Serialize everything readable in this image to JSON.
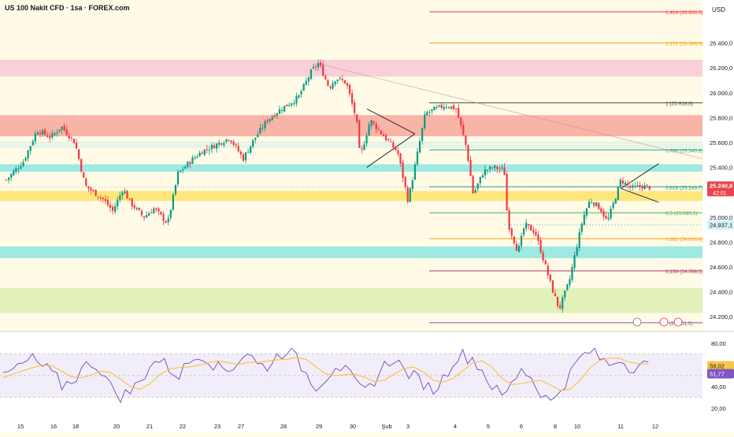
{
  "title": "US 100 Nakit CFD · 1sa · FOREX.com",
  "currency": "USD",
  "price_axis_labels": [
    "26.400,0",
    "26.200,0",
    "26.000,0",
    "25.800,0",
    "25.600,0",
    "25.400,0",
    "25.000,0",
    "24.800,0",
    "24.600,0",
    "24.400,0",
    "24.200,0"
  ],
  "last_price": "25.240,8",
  "countdown": "42:01",
  "reference_price": "24.937,1",
  "rsi_axis_labels": [
    "80,00",
    "60,00",
    "40,00",
    "20,00"
  ],
  "rsi_values": {
    "rsi": "59,02",
    "ma": "51,77"
  },
  "time_axis_labels": [
    "15",
    "16",
    "18",
    "20",
    "21",
    "22",
    "23",
    "27",
    "28",
    "29",
    "30",
    "Şub",
    "3",
    "4",
    "5",
    "6",
    "8",
    "10",
    "11",
    "12"
  ],
  "colors": {
    "up": "#089981",
    "down": "#f23645",
    "rsi": "#7e57c2",
    "rsi_ma": "#f7c548",
    "zone_pink": "#f8c8d4",
    "zone_red": "#f7a79b",
    "zone_cyan": "#8ee5e0",
    "zone_yellow": "#fde36a",
    "zone_green": "#dcefb0",
    "zone_light": "#fff2c8",
    "price_tag": "#e9434d",
    "ref_tag": "#d5f1f3"
  },
  "chart_data": {
    "type": "candlestick",
    "title": "US 100 Nakit CFD · 1sa · FOREX.com",
    "y_unit": "USD",
    "ylim": [
      24100,
      26720
    ],
    "close_path": [
      [
        0,
        25300
      ],
      [
        0.5,
        25450
      ],
      [
        0.9,
        25700
      ],
      [
        1.3,
        25640
      ],
      [
        1.6,
        25730
      ],
      [
        2.0,
        25600
      ],
      [
        2.3,
        25250
      ],
      [
        2.8,
        25150
      ],
      [
        3.1,
        25050
      ],
      [
        3.4,
        25230
      ],
      [
        3.6,
        25120
      ],
      [
        4.0,
        25000
      ],
      [
        4.3,
        25070
      ],
      [
        4.7,
        24950
      ],
      [
        5.0,
        25350
      ],
      [
        5.4,
        25460
      ],
      [
        5.7,
        25530
      ],
      [
        6.1,
        25580
      ],
      [
        6.5,
        25640
      ],
      [
        6.9,
        25470
      ],
      [
        7.2,
        25620
      ],
      [
        7.6,
        25780
      ],
      [
        8.0,
        25870
      ],
      [
        8.5,
        25960
      ],
      [
        8.9,
        26180
      ],
      [
        9.1,
        26240
      ],
      [
        9.4,
        26040
      ],
      [
        9.6,
        26120
      ],
      [
        9.9,
        26080
      ],
      [
        10.2,
        25780
      ],
      [
        10.3,
        25480
      ],
      [
        10.6,
        25780
      ],
      [
        11.0,
        25650
      ],
      [
        11.4,
        25520
      ],
      [
        11.7,
        25130
      ],
      [
        11.9,
        25410
      ],
      [
        12.2,
        25830
      ],
      [
        12.5,
        25870
      ],
      [
        12.8,
        25900
      ],
      [
        13.1,
        25870
      ],
      [
        13.4,
        25560
      ],
      [
        13.6,
        25180
      ],
      [
        13.9,
        25370
      ],
      [
        14.2,
        25400
      ],
      [
        14.5,
        25380
      ],
      [
        14.6,
        24960
      ],
      [
        14.9,
        24720
      ],
      [
        15.1,
        24940
      ],
      [
        15.4,
        24880
      ],
      [
        15.6,
        24700
      ],
      [
        15.9,
        24420
      ],
      [
        16.1,
        24260
      ],
      [
        16.4,
        24490
      ],
      [
        16.6,
        24750
      ],
      [
        16.8,
        25000
      ],
      [
        17.0,
        25140
      ],
      [
        17.3,
        25070
      ],
      [
        17.5,
        24960
      ],
      [
        17.8,
        25210
      ],
      [
        17.9,
        25300
      ],
      [
        18.2,
        25230
      ],
      [
        18.5,
        25250
      ],
      [
        18.7,
        25240
      ]
    ],
    "fibonacci": [
      {
        "level": "1,414",
        "price": "26.650,5",
        "value": 26650.5
      },
      {
        "level": "1,272",
        "price": "26.399,5",
        "value": 26399.5
      },
      {
        "level": "1",
        "price": "25.918,8",
        "value": 25918.8
      },
      {
        "level": "0,786",
        "price": "25.540,6",
        "value": 25540.6
      },
      {
        "level": "0,618",
        "price": "25.243,7",
        "value": 25243.7
      },
      {
        "level": "0,5",
        "price": "25.035,1",
        "value": 25035.1
      },
      {
        "level": "0,382",
        "price": "24.826,6",
        "value": 24826.6
      },
      {
        "level": "0,236",
        "price": "24.568,5",
        "value": 24568.5
      },
      {
        "level": "",
        "price": "24.151,5",
        "value": 24151.5
      }
    ],
    "zones": [
      {
        "from": 26130,
        "to": 26265,
        "color": "zone_pink"
      },
      {
        "from": 25650,
        "to": 25820,
        "color": "zone_red"
      },
      {
        "from": 25365,
        "to": 25425,
        "color": "zone_cyan"
      },
      {
        "from": 25130,
        "to": 25210,
        "color": "zone_yellow"
      },
      {
        "from": 24670,
        "to": 24765,
        "color": "zone_cyan"
      },
      {
        "from": 24230,
        "to": 24430,
        "color": "zone_green"
      }
    ],
    "rsi": {
      "ylim": [
        20,
        80
      ],
      "bands": [
        30,
        50,
        70
      ],
      "last": 59.02,
      "ma_last": 51.77,
      "path": [
        48,
        55,
        60,
        66,
        58,
        52,
        40,
        45,
        55,
        62,
        55,
        40,
        30,
        35,
        44,
        60,
        64,
        56,
        50,
        62,
        70,
        65,
        58,
        55,
        63,
        72,
        60,
        58,
        68,
        74,
        66,
        52,
        40,
        48,
        60,
        55,
        43,
        35,
        45,
        60,
        66,
        55,
        50,
        42,
        36,
        48,
        63,
        70,
        66,
        55,
        40,
        30,
        42,
        58,
        48,
        34,
        25,
        38,
        52,
        66,
        72,
        66,
        60,
        66,
        58,
        60,
        59
      ]
    },
    "x_ticks": [
      "15",
      "16",
      "18",
      "20",
      "21",
      "22",
      "23",
      "27",
      "28",
      "29",
      "30",
      "Şub",
      "3",
      "4",
      "5",
      "6",
      "8",
      "10",
      "11",
      "12"
    ]
  }
}
